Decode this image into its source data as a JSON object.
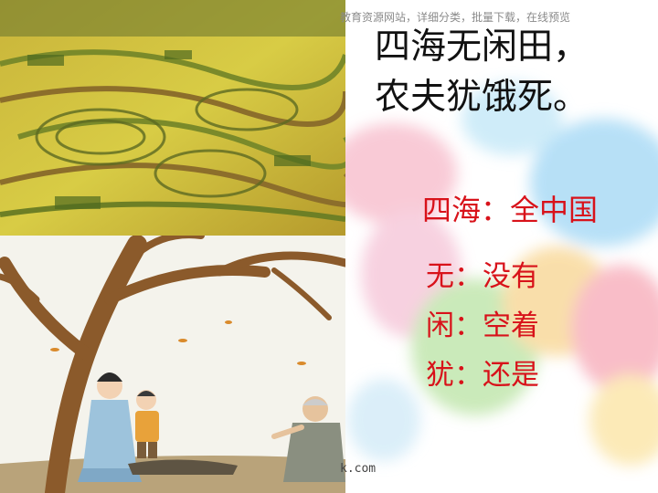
{
  "watermark": "教育资源网站，详细分类，批量下载，在线预览",
  "watermark_bottom": "k.com",
  "poem": {
    "line1": "四海无闲田，",
    "line2": "农夫犹饿死。"
  },
  "glosses": [
    {
      "term": "四海：",
      "definition": "全中国"
    },
    {
      "term": "无：",
      "definition": "没有"
    },
    {
      "term": "闲：",
      "definition": "空着"
    },
    {
      "term": "犹：",
      "definition": "还是"
    }
  ],
  "colors": {
    "gloss": "#d8121a",
    "poem": "#111111"
  }
}
